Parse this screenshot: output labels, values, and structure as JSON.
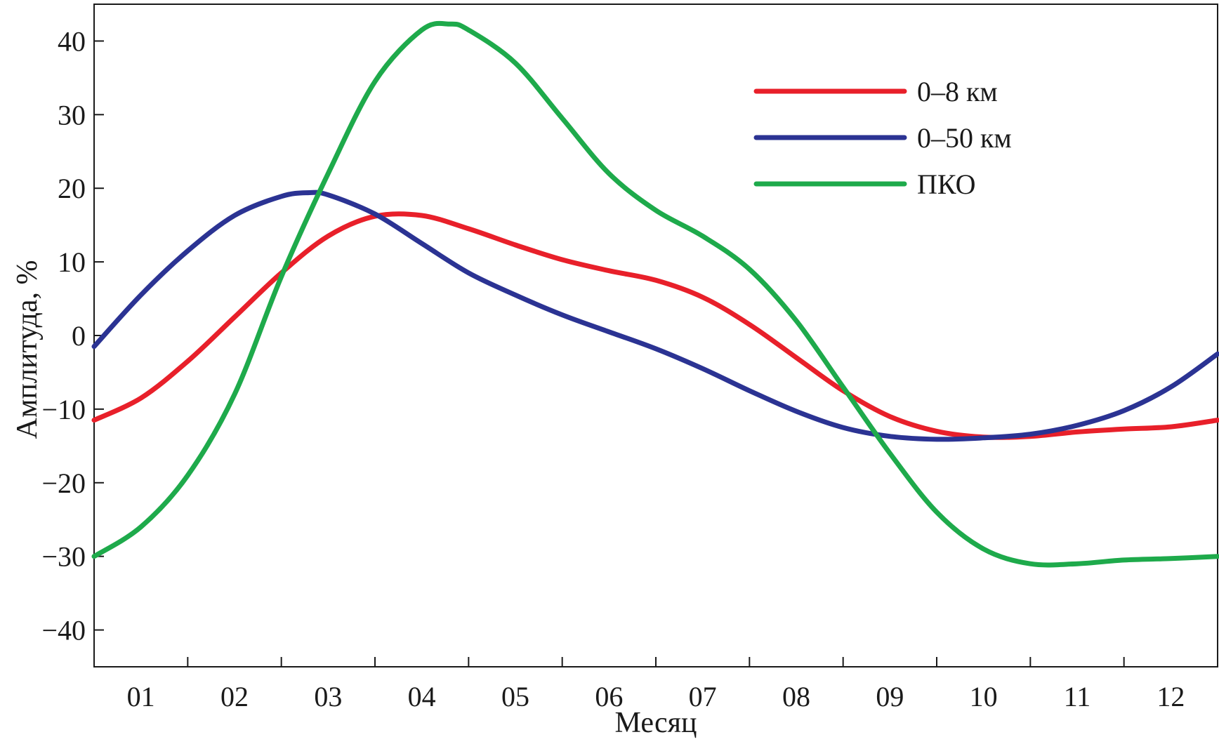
{
  "chart_data": {
    "type": "line",
    "title": "",
    "xlabel": "Месяц",
    "ylabel": "Амплитуда, %",
    "categories": [
      "01",
      "02",
      "03",
      "04",
      "05",
      "06",
      "07",
      "08",
      "09",
      "10",
      "11",
      "12"
    ],
    "xlim": [
      0.5,
      12.5
    ],
    "ylim": [
      -45,
      45
    ],
    "yticks": [
      40,
      30,
      20,
      10,
      0,
      -10,
      -20,
      -30,
      -40
    ],
    "ytick_labels": [
      "40",
      "30",
      "20",
      "10",
      "0",
      "−10",
      "−20",
      "−30",
      "−40"
    ],
    "grid": false,
    "legend_position": "top-right",
    "series": [
      {
        "name": "0–8 км",
        "color": "#e8202a",
        "x": [
          0.5,
          1.0,
          1.5,
          2.0,
          2.5,
          3.0,
          3.5,
          4.0,
          4.5,
          5.0,
          5.5,
          6.0,
          6.5,
          7.0,
          7.5,
          8.0,
          8.5,
          9.0,
          9.5,
          10.0,
          10.5,
          11.0,
          11.5,
          12.0,
          12.5
        ],
        "y": [
          -11.5,
          -8.5,
          -3.5,
          2.5,
          8.5,
          13.5,
          16.2,
          16.3,
          14.5,
          12.3,
          10.3,
          8.8,
          7.5,
          5.2,
          1.5,
          -3.0,
          -7.5,
          -11.0,
          -13.0,
          -13.8,
          -13.7,
          -13.1,
          -12.7,
          -12.4,
          -11.5
        ]
      },
      {
        "name": "0–50 км",
        "color": "#2b3393",
        "x": [
          0.5,
          1.0,
          1.5,
          2.0,
          2.5,
          2.8,
          3.0,
          3.5,
          4.0,
          4.5,
          5.0,
          5.5,
          6.0,
          6.5,
          7.0,
          7.5,
          8.0,
          8.5,
          9.0,
          9.5,
          10.0,
          10.5,
          11.0,
          11.5,
          12.0,
          12.5
        ],
        "y": [
          -1.5,
          5.5,
          11.5,
          16.3,
          18.9,
          19.4,
          19.1,
          16.5,
          12.5,
          8.5,
          5.5,
          2.8,
          0.5,
          -1.8,
          -4.5,
          -7.5,
          -10.3,
          -12.5,
          -13.7,
          -14.1,
          -13.9,
          -13.4,
          -12.2,
          -10.2,
          -7.0,
          -2.5
        ]
      },
      {
        "name": "ПКО",
        "color": "#1eaa4b",
        "x": [
          0.5,
          1.0,
          1.5,
          2.0,
          2.5,
          3.0,
          3.5,
          4.0,
          4.3,
          4.5,
          5.0,
          5.5,
          6.0,
          6.5,
          7.0,
          7.5,
          8.0,
          8.5,
          9.0,
          9.5,
          10.0,
          10.5,
          11.0,
          11.5,
          12.0,
          12.5
        ],
        "y": [
          -30.0,
          -26.0,
          -19.0,
          -8.0,
          8.0,
          22.0,
          34.5,
          41.5,
          42.3,
          41.5,
          37.0,
          29.5,
          22.0,
          17.0,
          13.5,
          9.0,
          2.0,
          -7.0,
          -16.0,
          -24.0,
          -29.0,
          -31.0,
          -31.0,
          -30.5,
          -30.3,
          -30.0
        ]
      }
    ]
  }
}
